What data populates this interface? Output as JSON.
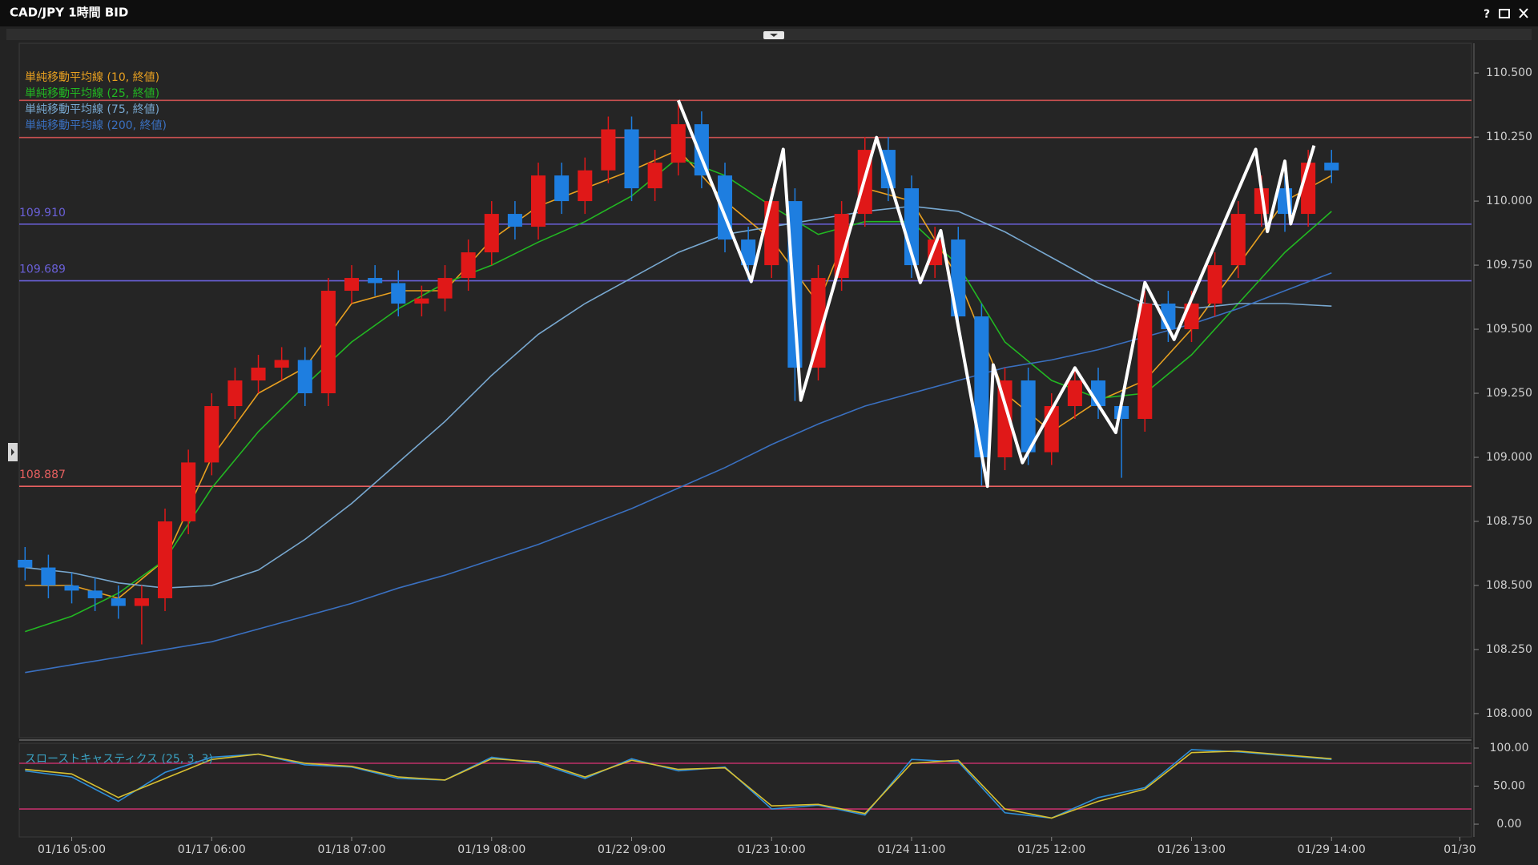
{
  "window": {
    "title": "CAD/JPY 1時間 BID",
    "help": "?"
  },
  "chart_data": [
    {
      "type": "candlestick",
      "x": [
        0,
        4,
        8,
        12,
        16,
        20,
        24,
        28,
        32,
        36,
        40,
        44,
        48,
        52,
        56,
        60,
        64,
        68,
        72,
        76,
        80,
        84,
        88,
        92,
        96,
        100,
        104,
        108,
        112,
        116,
        120,
        124,
        128,
        132,
        136,
        140,
        144,
        148,
        152,
        156,
        160,
        164,
        168,
        172,
        176,
        180,
        184,
        188,
        192,
        196,
        200,
        204,
        208,
        212,
        216,
        220,
        224
      ],
      "open": [
        108.6,
        108.57,
        108.5,
        108.48,
        108.45,
        108.42,
        108.45,
        108.75,
        108.98,
        109.2,
        109.3,
        109.35,
        109.38,
        109.25,
        109.65,
        109.7,
        109.68,
        109.6,
        109.62,
        109.7,
        109.8,
        109.95,
        109.9,
        110.1,
        110.0,
        110.12,
        110.28,
        110.05,
        110.15,
        110.3,
        110.1,
        109.85,
        109.75,
        110.0,
        109.35,
        109.7,
        109.95,
        110.2,
        110.05,
        109.75,
        109.85,
        109.55,
        109.0,
        109.3,
        109.02,
        109.2,
        109.3,
        109.2,
        109.15,
        109.6,
        109.5,
        109.6,
        109.75,
        109.95,
        110.05,
        109.95,
        110.15
      ],
      "high": [
        108.65,
        108.62,
        108.55,
        108.53,
        108.5,
        108.5,
        108.8,
        109.03,
        109.25,
        109.35,
        109.4,
        109.43,
        109.43,
        109.7,
        109.75,
        109.75,
        109.73,
        109.67,
        109.75,
        109.85,
        110.0,
        110.0,
        110.15,
        110.15,
        110.17,
        110.33,
        110.33,
        110.2,
        110.39,
        110.35,
        110.15,
        109.9,
        110.05,
        110.05,
        109.75,
        110.0,
        110.25,
        110.25,
        110.1,
        109.9,
        109.9,
        109.6,
        109.35,
        109.35,
        109.25,
        109.35,
        109.35,
        109.25,
        109.65,
        109.65,
        109.65,
        109.8,
        110.0,
        110.1,
        110.1,
        110.2,
        110.2
      ],
      "low": [
        108.52,
        108.45,
        108.43,
        108.4,
        108.37,
        108.27,
        108.4,
        108.7,
        108.93,
        109.15,
        109.25,
        109.3,
        109.2,
        109.2,
        109.6,
        109.63,
        109.55,
        109.55,
        109.57,
        109.65,
        109.75,
        109.85,
        109.85,
        109.95,
        109.95,
        110.07,
        110.0,
        110.0,
        110.1,
        110.05,
        109.8,
        109.69,
        109.7,
        109.22,
        109.3,
        109.65,
        109.9,
        110.0,
        109.7,
        109.7,
        109.5,
        108.89,
        108.95,
        108.97,
        108.97,
        109.15,
        109.15,
        108.92,
        109.1,
        109.45,
        109.45,
        109.55,
        109.7,
        109.9,
        109.88,
        109.9,
        110.07
      ],
      "close": [
        108.57,
        108.5,
        108.48,
        108.45,
        108.42,
        108.45,
        108.75,
        108.98,
        109.2,
        109.3,
        109.35,
        109.38,
        109.25,
        109.65,
        109.7,
        109.68,
        109.6,
        109.62,
        109.7,
        109.8,
        109.95,
        109.9,
        110.1,
        110.0,
        110.12,
        110.28,
        110.05,
        110.15,
        110.3,
        110.1,
        109.85,
        109.75,
        110.0,
        109.35,
        109.7,
        109.95,
        110.2,
        110.05,
        109.75,
        109.85,
        109.55,
        109.0,
        109.3,
        109.02,
        109.2,
        109.3,
        109.2,
        109.15,
        109.6,
        109.5,
        109.6,
        109.75,
        109.95,
        110.05,
        109.95,
        110.15,
        110.12
      ],
      "up_color": "#e01818",
      "down_color": "#1e7ee0",
      "series": [
        {
          "name": "単純移動平均線 (10, 終値)",
          "color": "#e8a020",
          "x": [
            0,
            8,
            16,
            24,
            32,
            40,
            48,
            56,
            64,
            72,
            80,
            88,
            96,
            104,
            112,
            120,
            128,
            136,
            144,
            152,
            160,
            168,
            176,
            184,
            192,
            200,
            208,
            216,
            224
          ],
          "values": [
            108.5,
            108.5,
            108.45,
            108.6,
            109.0,
            109.25,
            109.35,
            109.6,
            109.65,
            109.65,
            109.85,
            109.98,
            110.05,
            110.12,
            110.2,
            110.0,
            109.85,
            109.6,
            110.05,
            110.0,
            109.7,
            109.25,
            109.1,
            109.22,
            109.3,
            109.5,
            109.75,
            110.0,
            110.1
          ]
        },
        {
          "name": "単純移動平均線 (25, 終値)",
          "color": "#22b822",
          "x": [
            0,
            8,
            16,
            24,
            32,
            40,
            48,
            56,
            64,
            72,
            80,
            88,
            96,
            104,
            112,
            120,
            128,
            136,
            144,
            152,
            160,
            168,
            176,
            184,
            192,
            200,
            208,
            216,
            224
          ],
          "values": [
            108.32,
            108.38,
            108.47,
            108.6,
            108.88,
            109.1,
            109.28,
            109.45,
            109.58,
            109.68,
            109.75,
            109.84,
            109.92,
            110.02,
            110.17,
            110.1,
            109.98,
            109.87,
            109.92,
            109.92,
            109.75,
            109.45,
            109.3,
            109.23,
            109.25,
            109.4,
            109.6,
            109.8,
            109.96
          ]
        },
        {
          "name": "単純移動平均線 (75, 終値)",
          "color": "#78a8d0",
          "x": [
            0,
            8,
            16,
            24,
            32,
            40,
            48,
            56,
            64,
            72,
            80,
            88,
            96,
            104,
            112,
            120,
            128,
            136,
            144,
            152,
            160,
            168,
            176,
            184,
            192,
            200,
            208,
            216,
            224
          ],
          "values": [
            108.57,
            108.55,
            108.51,
            108.49,
            108.5,
            108.56,
            108.68,
            108.82,
            108.98,
            109.14,
            109.32,
            109.48,
            109.6,
            109.7,
            109.8,
            109.87,
            109.9,
            109.93,
            109.96,
            109.98,
            109.96,
            109.88,
            109.78,
            109.68,
            109.6,
            109.58,
            109.6,
            109.6,
            109.59
          ]
        },
        {
          "name": "単純移動平均線 (200, 終値)",
          "color": "#3a70c0",
          "x": [
            0,
            8,
            16,
            24,
            32,
            40,
            48,
            56,
            64,
            72,
            80,
            88,
            96,
            104,
            112,
            120,
            128,
            136,
            144,
            152,
            160,
            168,
            176,
            184,
            192,
            200,
            208,
            216,
            224
          ],
          "values": [
            108.16,
            108.19,
            108.22,
            108.25,
            108.28,
            108.33,
            108.38,
            108.43,
            108.49,
            108.54,
            108.6,
            108.66,
            108.73,
            108.8,
            108.88,
            108.96,
            109.05,
            109.13,
            109.2,
            109.25,
            109.3,
            109.35,
            109.38,
            109.42,
            109.47,
            109.52,
            109.58,
            109.65,
            109.72
          ]
        }
      ],
      "zigzag": {
        "color": "#ffffff",
        "x": [
          112,
          124.5,
          130,
          133,
          146,
          153.5,
          157,
          165,
          166,
          171,
          180,
          187,
          192,
          197,
          211,
          213,
          216,
          217,
          221
        ],
        "values": [
          110.393,
          109.686,
          110.202,
          109.223,
          110.248,
          109.682,
          109.885,
          108.887,
          109.361,
          108.979,
          109.349,
          109.097,
          109.682,
          109.46,
          110.202,
          109.881,
          110.156,
          109.911,
          110.217
        ]
      },
      "hlines": [
        {
          "value": 110.393,
          "color": "#c85050"
        },
        {
          "value": 110.248,
          "color": "#c85050"
        },
        {
          "value": 109.91,
          "label": "109.910",
          "color": "#6a60d8"
        },
        {
          "value": 109.689,
          "label": "109.689",
          "color": "#6a60d8"
        },
        {
          "value": 108.887,
          "label": "108.887",
          "color": "#e86060"
        }
      ],
      "xlim": [
        -1,
        248
      ],
      "ylim": [
        107.906,
        110.616
      ],
      "yticks": [
        {
          "value": 108,
          "label": "108.000"
        },
        {
          "value": 108.25,
          "label": "108.250"
        },
        {
          "value": 108.5,
          "label": "108.500"
        },
        {
          "value": 108.75,
          "label": "108.750"
        },
        {
          "value": 109,
          "label": "109.000"
        },
        {
          "value": 109.25,
          "label": "109.250"
        },
        {
          "value": 109.5,
          "label": "109.500"
        },
        {
          "value": 109.75,
          "label": "109.750"
        },
        {
          "value": 110,
          "label": "110.000"
        },
        {
          "value": 110.25,
          "label": "110.250"
        },
        {
          "value": 110.5,
          "label": "110.500"
        }
      ]
    },
    {
      "type": "line",
      "title": "スローストキャスティクス (25, 3, 3)",
      "x": [
        0,
        8,
        16,
        24,
        32,
        40,
        48,
        56,
        64,
        72,
        80,
        88,
        96,
        104,
        112,
        120,
        128,
        136,
        144,
        152,
        160,
        168,
        176,
        184,
        192,
        200,
        208,
        216,
        224
      ],
      "series": [
        {
          "color": "#2f8fd8",
          "values": [
            70,
            62,
            30,
            68,
            88,
            92,
            78,
            75,
            60,
            58,
            88,
            80,
            60,
            86,
            70,
            75,
            20,
            25,
            12,
            85,
            82,
            15,
            8,
            35,
            48,
            98,
            95,
            90,
            85
          ]
        },
        {
          "color": "#d8c030",
          "values": [
            72,
            66,
            35,
            60,
            85,
            92,
            80,
            76,
            62,
            58,
            86,
            82,
            62,
            84,
            72,
            74,
            24,
            26,
            14,
            80,
            84,
            20,
            8,
            30,
            46,
            94,
            96,
            91,
            86
          ]
        }
      ],
      "hlines": [
        {
          "value": 80,
          "color": "#c0306a"
        },
        {
          "value": 20,
          "color": "#c0306a"
        }
      ],
      "xlim": [
        -1,
        248
      ],
      "ylim": [
        -16.8,
        106.3
      ],
      "yticks": [
        {
          "value": 0,
          "label": "0.00"
        },
        {
          "value": 50,
          "label": "50.00"
        },
        {
          "value": 100,
          "label": "100.00"
        }
      ],
      "xticks": [
        {
          "value": 8,
          "label": "01/16 05:00"
        },
        {
          "value": 32,
          "label": "01/17 06:00"
        },
        {
          "value": 56,
          "label": "01/18 07:00"
        },
        {
          "value": 80,
          "label": "01/19 08:00"
        },
        {
          "value": 104,
          "label": "01/22 09:00"
        },
        {
          "value": 128,
          "label": "01/23 10:00"
        },
        {
          "value": 152,
          "label": "01/24 11:00"
        },
        {
          "value": 176,
          "label": "01/25 12:00"
        },
        {
          "value": 200,
          "label": "01/26 13:00"
        },
        {
          "value": 224,
          "label": "01/29 14:00"
        },
        {
          "value": 246,
          "label": "01/30"
        }
      ]
    }
  ]
}
